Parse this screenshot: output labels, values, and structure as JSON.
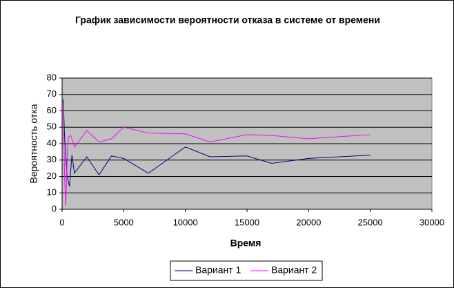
{
  "chart_data": {
    "type": "line",
    "title": "График зависимости вероятности отказа в системе от времени",
    "x_label": "Время",
    "y_label": "Вероятность отка",
    "xlim": [
      0,
      30000
    ],
    "xticks": [
      0,
      5000,
      10000,
      15000,
      20000,
      25000,
      30000
    ],
    "ylim": [
      0,
      80
    ],
    "yticks": [
      0,
      10,
      20,
      30,
      40,
      50,
      60,
      70,
      80
    ],
    "grid": true,
    "legend": "bottom",
    "series": [
      {
        "name": "Вариант 1",
        "color": "#000080",
        "x": [
          100,
          200,
          300,
          400,
          600,
          800,
          1000,
          2000,
          3000,
          4000,
          5000,
          7000,
          10000,
          12000,
          15000,
          17000,
          20000,
          25000
        ],
        "values": [
          67,
          44,
          33,
          20,
          14,
          33,
          22,
          32,
          21,
          32.5,
          31,
          22,
          38,
          32,
          32.5,
          28,
          31,
          33
        ]
      },
      {
        "name": "Вариант 2",
        "color": "#ff00ff",
        "x": [
          100,
          200,
          300,
          400,
          500,
          700,
          1000,
          2000,
          3000,
          4000,
          5000,
          7000,
          10000,
          12000,
          15000,
          17000,
          20000,
          25000
        ],
        "values": [
          63,
          20,
          2,
          30,
          44,
          45,
          38,
          48,
          41,
          43,
          50,
          46.5,
          46,
          41,
          45.5,
          45,
          43,
          45.5
        ]
      }
    ]
  }
}
